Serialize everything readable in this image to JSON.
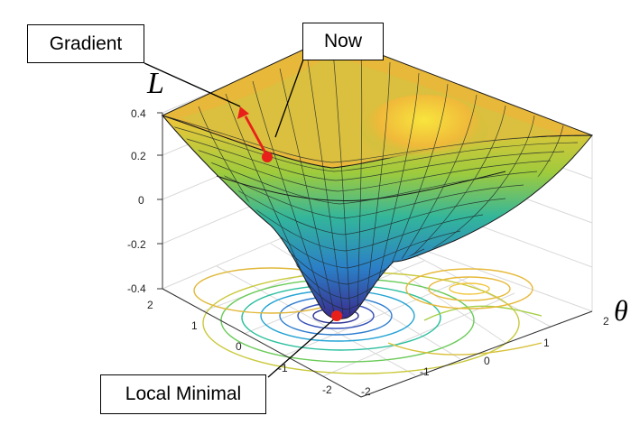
{
  "labels": {
    "gradient": "Gradient",
    "now": "Now",
    "local_minimal": "Local Minimal",
    "z_axis": "L",
    "theta_axis": "θ"
  },
  "z_ticks": [
    "0.4",
    "0.2",
    "0",
    "-0.2",
    "-0.4"
  ],
  "y_ticks_left": [
    "2",
    "1",
    "0",
    "-1",
    "-2"
  ],
  "x_ticks_right": [
    "-2",
    "-1",
    "0",
    "1",
    "2"
  ],
  "colors": {
    "gradient_arrow": "#e8201a",
    "point": "#e8201a",
    "surface_high": "#f4d83a",
    "surface_mid": "#2fb59a",
    "surface_low": "#3d2a8e",
    "contour": "#d6b63a",
    "grid": "#d9d9d9"
  }
}
